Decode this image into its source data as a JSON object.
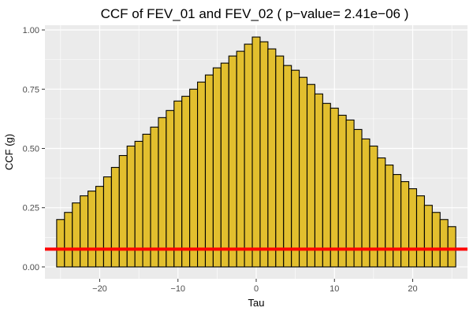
{
  "chart_data": {
    "type": "bar",
    "title": "CCF of FEV_01 and FEV_02 ( p−value= 2.41e−06 )",
    "xlabel": "Tau",
    "ylabel": "CCF (g)",
    "xlim": [
      -27,
      27
    ],
    "ylim": [
      -0.05,
      1.02
    ],
    "xticks": [
      -20,
      -10,
      0,
      10,
      20
    ],
    "xtick_labels": [
      "−20",
      "−10",
      "0",
      "10",
      "20"
    ],
    "yticks": [
      0.0,
      0.25,
      0.5,
      0.75,
      1.0
    ],
    "ytick_labels": [
      "0.00",
      "0.25",
      "0.50",
      "0.75",
      "1.00"
    ],
    "grid": true,
    "background": "#ebebeb",
    "grid_color": "#ffffff",
    "bar_fill": "#e2bf2e",
    "bar_stroke": "#000000",
    "x": [
      -25,
      -24,
      -23,
      -22,
      -21,
      -20,
      -19,
      -18,
      -17,
      -16,
      -15,
      -14,
      -13,
      -12,
      -11,
      -10,
      -9,
      -8,
      -7,
      -6,
      -5,
      -4,
      -3,
      -2,
      -1,
      0,
      1,
      2,
      3,
      4,
      5,
      6,
      7,
      8,
      9,
      10,
      11,
      12,
      13,
      14,
      15,
      16,
      17,
      18,
      19,
      20,
      21,
      22,
      23,
      24,
      25
    ],
    "values": [
      0.2,
      0.23,
      0.27,
      0.3,
      0.32,
      0.34,
      0.38,
      0.42,
      0.47,
      0.51,
      0.53,
      0.56,
      0.59,
      0.63,
      0.66,
      0.7,
      0.72,
      0.75,
      0.78,
      0.81,
      0.84,
      0.86,
      0.89,
      0.91,
      0.94,
      0.97,
      0.95,
      0.92,
      0.89,
      0.85,
      0.83,
      0.8,
      0.77,
      0.73,
      0.69,
      0.67,
      0.64,
      0.62,
      0.58,
      0.54,
      0.51,
      0.46,
      0.43,
      0.39,
      0.36,
      0.33,
      0.3,
      0.26,
      0.23,
      0.2,
      0.17
    ],
    "threshold": {
      "value": 0.075,
      "color": "#ff0000"
    }
  }
}
